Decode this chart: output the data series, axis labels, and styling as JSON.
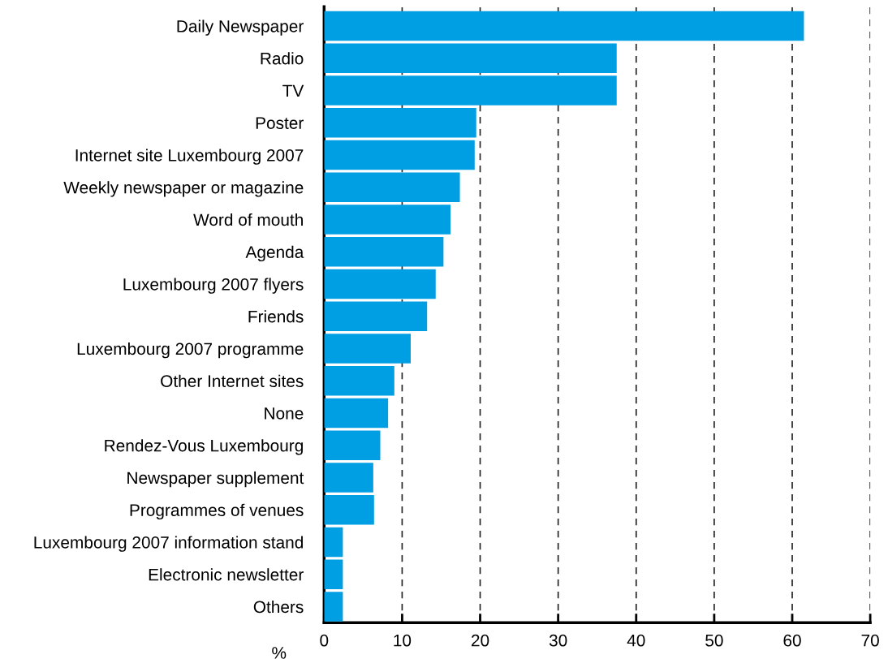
{
  "chart_data": {
    "type": "bar",
    "orientation": "horizontal",
    "xlabel": "%",
    "categories": [
      "Daily Newspaper",
      "Radio",
      "TV",
      "Poster",
      "Internet site Luxembourg 2007",
      "Weekly newspaper or magazine",
      "Word of mouth",
      "Agenda",
      "Luxembourg 2007 flyers",
      "Friends",
      "Luxembourg 2007 programme",
      "Other Internet sites",
      "None",
      "Rendez-Vous Luxembourg",
      "Newspaper supplement",
      "Programmes of venues",
      "Luxembourg 2007 information stand",
      "Electronic newsletter",
      "Others"
    ],
    "values": [
      61.5,
      37.5,
      37.5,
      19.5,
      19.3,
      17.4,
      16.2,
      15.3,
      14.3,
      13.2,
      11.1,
      9.0,
      8.2,
      7.2,
      6.3,
      6.4,
      2.4,
      2.4,
      2.4
    ],
    "color": "#009fe3",
    "xlim": [
      0,
      70
    ],
    "xticks": [
      0,
      10,
      20,
      30,
      40,
      50,
      60,
      70
    ],
    "grid": "x",
    "line_style": "dashed"
  }
}
